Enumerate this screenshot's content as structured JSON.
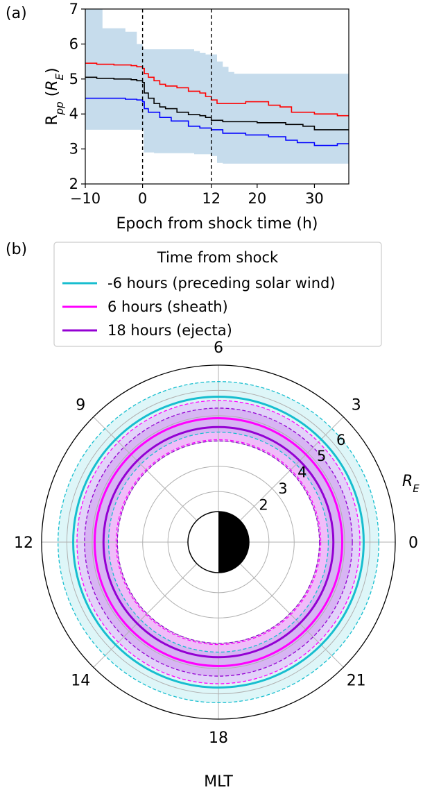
{
  "panel_a": {
    "label": "(a)",
    "ylabel_main": "R",
    "ylabel_sub": "pp",
    "ylabel_unit_open": " (",
    "ylabel_unit_main": "R",
    "ylabel_unit_sub": "E",
    "ylabel_unit_close": ")",
    "xlabel": "Epoch from shock time (h)"
  },
  "panel_b": {
    "label": "(b)",
    "legend_title": "Time from shock",
    "radial_unit_main": "R",
    "radial_unit_sub": "E",
    "mlt_label": "MLT"
  },
  "colors": {
    "upper": "#ff0000",
    "median": "#000000",
    "lower": "#0000ff",
    "band": "#c6dcec",
    "cyan": "#17becf",
    "magenta": "#ff00ff",
    "purple": "#9400d3"
  },
  "chart_data": [
    {
      "type": "line",
      "xlabel": "Epoch from shock time (h)",
      "ylabel": "Rpp (RE)",
      "xlim": [
        -10,
        36
      ],
      "ylim": [
        2,
        7
      ],
      "xticks": [
        -10,
        0,
        12,
        20,
        30
      ],
      "xtick_labels": [
        "−10",
        "0",
        "12",
        "20",
        "30"
      ],
      "yticks": [
        2,
        3,
        4,
        5,
        6,
        7
      ],
      "vlines": [
        0,
        12
      ],
      "shaded_band": {
        "x": [
          -10,
          -7,
          -3,
          -1,
          0,
          0.2,
          2,
          9,
          10,
          11,
          12,
          13,
          14,
          15,
          16,
          18,
          30,
          36
        ],
        "upper": [
          7.0,
          6.45,
          6.35,
          6.0,
          5.9,
          5.85,
          5.85,
          5.8,
          5.75,
          5.7,
          5.7,
          5.5,
          5.35,
          5.2,
          5.15,
          5.15,
          5.15,
          5.15
        ],
        "lower": [
          3.55,
          3.55,
          3.55,
          3.55,
          3.55,
          2.9,
          2.88,
          2.85,
          2.85,
          2.85,
          2.8,
          2.6,
          2.58,
          2.58,
          2.58,
          2.58,
          2.58,
          2.58
        ]
      },
      "series": [
        {
          "color": "#ff0000",
          "x": [
            -10,
            -8,
            -5,
            -2,
            -1,
            0,
            0.3,
            1,
            2,
            3,
            4,
            6,
            8,
            10,
            11,
            12,
            13,
            15,
            18,
            22,
            24,
            26,
            30,
            34,
            36
          ],
          "values": [
            5.45,
            5.42,
            5.4,
            5.38,
            5.35,
            5.3,
            5.15,
            5.05,
            4.95,
            4.85,
            4.8,
            4.75,
            4.65,
            4.6,
            4.5,
            4.4,
            4.3,
            4.3,
            4.35,
            4.25,
            4.2,
            4.05,
            4.0,
            3.95,
            3.95
          ]
        },
        {
          "color": "#000000",
          "x": [
            -10,
            -8,
            -5,
            -2,
            -1,
            0,
            0.3,
            1,
            2,
            3,
            4,
            6,
            8,
            10,
            11,
            12,
            14,
            16,
            20,
            25,
            28,
            30,
            36
          ],
          "values": [
            5.05,
            5.02,
            5.0,
            4.98,
            4.95,
            4.9,
            4.6,
            4.45,
            4.3,
            4.2,
            4.15,
            4.05,
            3.98,
            3.95,
            3.9,
            3.82,
            3.78,
            3.78,
            3.75,
            3.7,
            3.65,
            3.55,
            3.55
          ]
        },
        {
          "color": "#0000ff",
          "x": [
            -10,
            -6,
            -3,
            -1,
            0,
            0.3,
            1,
            3,
            5,
            8,
            10,
            12,
            14,
            18,
            22,
            25,
            27,
            30,
            34,
            36
          ],
          "values": [
            4.45,
            4.45,
            4.42,
            4.4,
            4.35,
            4.15,
            4.05,
            3.9,
            3.8,
            3.65,
            3.6,
            3.55,
            3.45,
            3.4,
            3.35,
            3.25,
            3.18,
            3.1,
            3.15,
            3.15
          ]
        }
      ]
    },
    {
      "type": "polar",
      "angular_tick_labels": [
        "0",
        "3",
        "6",
        "9",
        "12",
        "14",
        "18",
        "21"
      ],
      "angular_tick_angles_deg": [
        0,
        45,
        90,
        135,
        180,
        225,
        270,
        315
      ],
      "radial_ticks": [
        2,
        3,
        4,
        5,
        6
      ],
      "radial_tick_labels": [
        "2",
        "3",
        "4",
        "5",
        "6"
      ],
      "rlim": [
        0,
        7
      ],
      "series": [
        {
          "name": "-6 hours (preceding solar wind)",
          "color": "#17becf",
          "r": 5.75,
          "r_low": 4.35,
          "r_high": 6.35
        },
        {
          "name": "6 hours (sheath)",
          "color": "#ff00ff",
          "r": 4.9,
          "r_low": 4.05,
          "r_high": 5.6
        },
        {
          "name": "18 hours (ejecta)",
          "color": "#9400d3",
          "r": 4.55,
          "r_low": 4.0,
          "r_high": 5.3
        }
      ]
    }
  ]
}
